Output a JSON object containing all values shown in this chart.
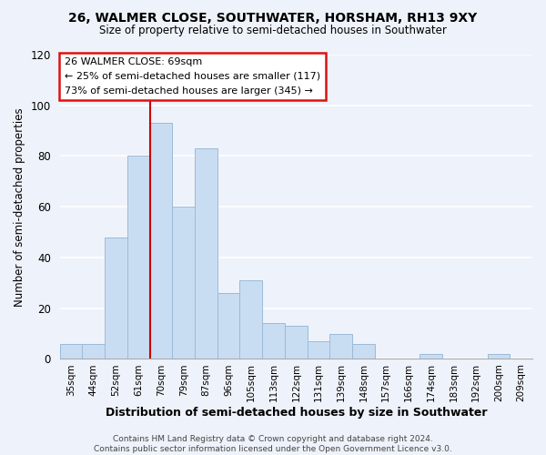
{
  "title": "26, WALMER CLOSE, SOUTHWATER, HORSHAM, RH13 9XY",
  "subtitle": "Size of property relative to semi-detached houses in Southwater",
  "xlabel": "Distribution of semi-detached houses by size in Southwater",
  "ylabel": "Number of semi-detached properties",
  "bar_labels": [
    "35sqm",
    "44sqm",
    "52sqm",
    "61sqm",
    "70sqm",
    "79sqm",
    "87sqm",
    "96sqm",
    "105sqm",
    "113sqm",
    "122sqm",
    "131sqm",
    "139sqm",
    "148sqm",
    "157sqm",
    "166sqm",
    "174sqm",
    "183sqm",
    "192sqm",
    "200sqm",
    "209sqm"
  ],
  "bar_values": [
    6,
    6,
    48,
    80,
    93,
    60,
    83,
    26,
    31,
    14,
    13,
    7,
    10,
    6,
    0,
    0,
    2,
    0,
    0,
    2,
    0
  ],
  "bar_color": "#c9ddf2",
  "bar_edge_color": "#9bbbd8",
  "vline_color": "#cc0000",
  "annotation_line1": "26 WALMER CLOSE: 69sqm",
  "annotation_line2": "← 25% of semi-detached houses are smaller (117)",
  "annotation_line3": "73% of semi-detached houses are larger (345) →",
  "ylim": [
    0,
    120
  ],
  "yticks": [
    0,
    20,
    40,
    60,
    80,
    100,
    120
  ],
  "footer_text": "Contains HM Land Registry data © Crown copyright and database right 2024.\nContains public sector information licensed under the Open Government Licence v3.0.",
  "bg_color": "#eef2fa",
  "grid_color": "white",
  "annotation_box_color": "#dd1111"
}
